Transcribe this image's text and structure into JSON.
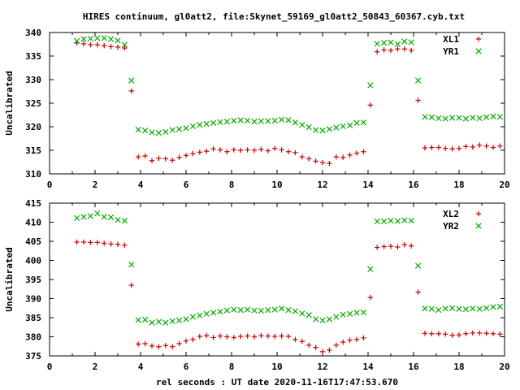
{
  "title": "HIRES continuum, gl0att2, file:Skynet_59169_gl0att2_50843_60367.cyb.txt",
  "chart_data": [
    {
      "type": "scatter",
      "ylabel": "Uncalibrated",
      "xlabel": "",
      "xlim": [
        0,
        20
      ],
      "ylim": [
        310,
        340
      ],
      "xticks": [
        "0",
        "2",
        "4",
        "6",
        "8",
        "10",
        "12",
        "14",
        "16",
        "18",
        "20"
      ],
      "yticks": [
        "310",
        "315",
        "320",
        "325",
        "330",
        "335",
        "340"
      ],
      "legend_position": "top-right",
      "grid": false,
      "series": [
        {
          "name": "XL1",
          "marker": "plus",
          "color": "#cc0000",
          "x": [
            1.2,
            1.5,
            1.8,
            2.1,
            2.4,
            2.7,
            3.0,
            3.3,
            3.6,
            3.9,
            4.2,
            4.5,
            4.8,
            5.1,
            5.4,
            5.7,
            6.0,
            6.3,
            6.6,
            6.9,
            7.2,
            7.5,
            7.8,
            8.1,
            8.4,
            8.7,
            9.0,
            9.3,
            9.6,
            9.9,
            10.2,
            10.5,
            10.8,
            11.1,
            11.4,
            11.7,
            12.0,
            12.3,
            12.6,
            12.9,
            13.2,
            13.5,
            13.8,
            14.1,
            14.4,
            14.7,
            15.0,
            15.3,
            15.6,
            15.9,
            16.2,
            16.5,
            16.8,
            17.1,
            17.4,
            17.7,
            18.0,
            18.3,
            18.6,
            18.9,
            19.2,
            19.5,
            19.8
          ],
          "y": [
            337.8,
            337.6,
            337.4,
            337.4,
            337.2,
            337.0,
            336.9,
            336.7,
            327.6,
            313.6,
            313.8,
            312.8,
            313.3,
            313.2,
            312.9,
            313.5,
            313.9,
            314.3,
            314.6,
            314.8,
            315.3,
            315.1,
            314.7,
            315.1,
            315.0,
            315.1,
            315.0,
            315.2,
            314.9,
            315.4,
            315.1,
            314.7,
            314.5,
            313.6,
            313.2,
            312.7,
            312.4,
            312.2,
            313.6,
            313.5,
            314.0,
            314.4,
            314.7,
            324.6,
            335.9,
            336.3,
            336.2,
            336.5,
            336.5,
            336.2,
            325.6,
            315.5,
            315.6,
            315.6,
            315.4,
            315.3,
            315.4,
            315.8,
            315.7,
            316.1,
            315.9,
            315.6,
            315.9
          ]
        },
        {
          "name": "YR1",
          "marker": "cross",
          "color": "#00aa00",
          "x": [
            1.2,
            1.5,
            1.8,
            2.1,
            2.4,
            2.7,
            3.0,
            3.3,
            3.6,
            3.9,
            4.2,
            4.5,
            4.8,
            5.1,
            5.4,
            5.7,
            6.0,
            6.3,
            6.6,
            6.9,
            7.2,
            7.5,
            7.8,
            8.1,
            8.4,
            8.7,
            9.0,
            9.3,
            9.6,
            9.9,
            10.2,
            10.5,
            10.8,
            11.1,
            11.4,
            11.7,
            12.0,
            12.3,
            12.6,
            12.9,
            13.2,
            13.5,
            13.8,
            14.1,
            14.4,
            14.7,
            15.0,
            15.3,
            15.6,
            15.9,
            16.2,
            16.5,
            16.8,
            17.1,
            17.4,
            17.7,
            18.0,
            18.3,
            18.6,
            18.9,
            19.2,
            19.5,
            19.8
          ],
          "y": [
            338.2,
            338.6,
            338.7,
            338.8,
            338.8,
            338.6,
            338.3,
            337.4,
            329.8,
            319.4,
            319.2,
            318.8,
            318.7,
            318.9,
            319.3,
            319.5,
            319.7,
            320.1,
            320.4,
            320.6,
            320.8,
            321.0,
            321.1,
            321.3,
            321.4,
            321.3,
            321.1,
            321.2,
            321.2,
            321.3,
            321.5,
            321.4,
            320.9,
            320.4,
            319.9,
            319.3,
            319.2,
            319.5,
            319.8,
            320.1,
            320.3,
            320.8,
            320.9,
            328.8,
            337.6,
            337.8,
            337.9,
            337.5,
            338.1,
            337.9,
            329.8,
            322.1,
            322.0,
            321.8,
            321.7,
            321.9,
            321.9,
            321.7,
            321.9,
            321.8,
            322.0,
            322.2,
            322.1
          ]
        }
      ]
    },
    {
      "type": "scatter",
      "ylabel": "Uncalibrated",
      "xlabel": "rel seconds : UT date 2020-11-16T17:47:53.670",
      "xlim": [
        0,
        20
      ],
      "ylim": [
        375,
        415
      ],
      "xticks": [
        "0",
        "2",
        "4",
        "6",
        "8",
        "10",
        "12",
        "14",
        "16",
        "18",
        "20"
      ],
      "yticks": [
        "375",
        "380",
        "385",
        "390",
        "395",
        "400",
        "405",
        "410",
        "415"
      ],
      "legend_position": "top-right",
      "grid": false,
      "series": [
        {
          "name": "XL2",
          "marker": "plus",
          "color": "#cc0000",
          "x": [
            1.2,
            1.5,
            1.8,
            2.1,
            2.4,
            2.7,
            3.0,
            3.3,
            3.6,
            3.9,
            4.2,
            4.5,
            4.8,
            5.1,
            5.4,
            5.7,
            6.0,
            6.3,
            6.6,
            6.9,
            7.2,
            7.5,
            7.8,
            8.1,
            8.4,
            8.7,
            9.0,
            9.3,
            9.6,
            9.9,
            10.2,
            10.5,
            10.8,
            11.1,
            11.4,
            11.7,
            12.0,
            12.3,
            12.6,
            12.9,
            13.2,
            13.5,
            13.8,
            14.1,
            14.4,
            14.7,
            15.0,
            15.3,
            15.6,
            15.9,
            16.2,
            16.5,
            16.8,
            17.1,
            17.4,
            17.7,
            18.0,
            18.3,
            18.6,
            18.9,
            19.2,
            19.5,
            19.8
          ],
          "y": [
            404.8,
            404.8,
            404.7,
            404.7,
            404.5,
            404.3,
            404.2,
            404.0,
            393.5,
            378.1,
            378.2,
            377.6,
            377.4,
            377.7,
            377.4,
            378.2,
            378.9,
            379.3,
            380.1,
            380.3,
            379.8,
            380.2,
            380.0,
            379.8,
            380.1,
            380.2,
            380.0,
            380.3,
            380.2,
            380.1,
            380.2,
            380.1,
            379.3,
            378.8,
            377.8,
            377.2,
            376.1,
            376.5,
            377.8,
            378.6,
            379.1,
            379.3,
            379.7,
            390.3,
            403.4,
            403.6,
            403.7,
            403.5,
            404.1,
            403.8,
            391.7,
            380.9,
            380.8,
            380.8,
            380.7,
            380.4,
            380.5,
            380.8,
            381.0,
            381.0,
            380.9,
            380.8,
            380.7
          ]
        },
        {
          "name": "YR2",
          "marker": "cross",
          "color": "#00aa00",
          "x": [
            1.2,
            1.5,
            1.8,
            2.1,
            2.4,
            2.7,
            3.0,
            3.3,
            3.6,
            3.9,
            4.2,
            4.5,
            4.8,
            5.1,
            5.4,
            5.7,
            6.0,
            6.3,
            6.6,
            6.9,
            7.2,
            7.5,
            7.8,
            8.1,
            8.4,
            8.7,
            9.0,
            9.3,
            9.6,
            9.9,
            10.2,
            10.5,
            10.8,
            11.1,
            11.4,
            11.7,
            12.0,
            12.3,
            12.6,
            12.9,
            13.2,
            13.5,
            13.8,
            14.1,
            14.4,
            14.7,
            15.0,
            15.3,
            15.6,
            15.9,
            16.2,
            16.5,
            16.8,
            17.1,
            17.4,
            17.7,
            18.0,
            18.3,
            18.6,
            18.9,
            19.2,
            19.5,
            19.8
          ],
          "y": [
            411.1,
            411.4,
            411.6,
            412.3,
            411.4,
            411.3,
            410.6,
            410.4,
            398.9,
            384.4,
            384.5,
            383.7,
            383.9,
            383.7,
            384.1,
            384.3,
            384.6,
            385.2,
            385.6,
            386.0,
            386.3,
            386.6,
            386.9,
            387.1,
            387.0,
            387.1,
            386.9,
            386.8,
            387.0,
            387.1,
            387.4,
            387.0,
            386.7,
            386.1,
            385.7,
            384.6,
            384.3,
            384.6,
            385.2,
            385.8,
            386.0,
            386.3,
            386.4,
            397.7,
            410.2,
            410.2,
            410.4,
            410.3,
            410.5,
            410.4,
            398.6,
            387.4,
            387.3,
            387.0,
            387.4,
            387.5,
            387.3,
            387.2,
            387.4,
            387.3,
            387.5,
            387.8,
            387.9
          ]
        }
      ]
    }
  ]
}
